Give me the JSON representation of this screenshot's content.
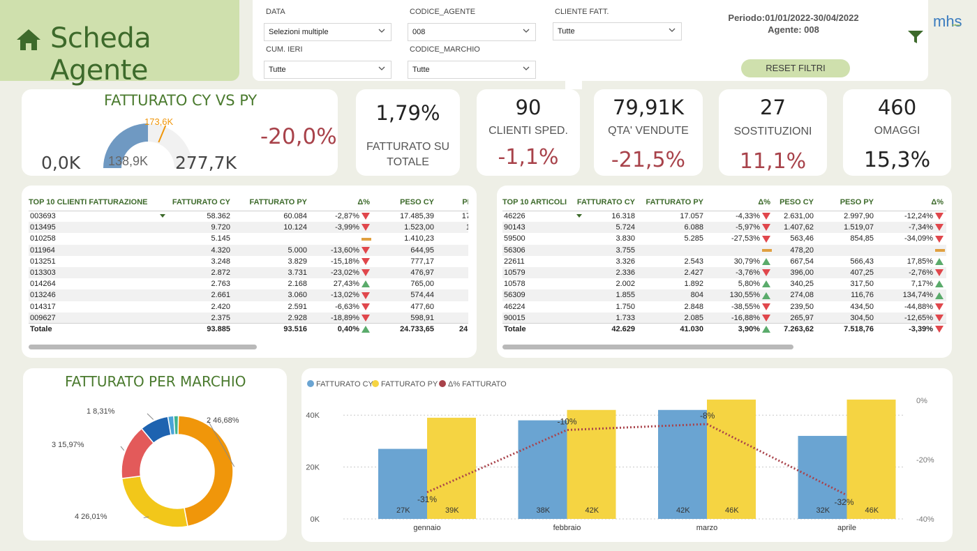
{
  "title": "Scheda Agente",
  "filters": {
    "data_label": "DATA",
    "data_value": "Selezioni multiple",
    "agente_label": "CODICE_AGENTE",
    "agente_value": "008",
    "cliente_label": "CLIENTE FATT.",
    "cliente_value": "Tutte",
    "cum_label": "CUM. IERI",
    "cum_value": "Tutte",
    "marchio_label": "CODICE_MARCHIO",
    "marchio_value": "Tutte",
    "periodo": "Periodo:01/01/2022-30/04/2022",
    "agente_info": "Agente: 008",
    "reset_label": "RESET FILTRI",
    "logo_text": "mhs"
  },
  "gauge": {
    "title": "FATTURATO CY VS PY",
    "min_label": "0,0K",
    "max_label": "277,7K",
    "value_label": "138,9K",
    "target_label": "173,6K",
    "delta": "-20,0%",
    "value": 138.9,
    "target": 173.6,
    "max": 277.7
  },
  "kpis": [
    {
      "value": "1,79%",
      "label": "FATTURATO SU TOTALE",
      "delta": ""
    },
    {
      "value": "90",
      "label": "CLIENTI SPED.",
      "delta": "-1,1%"
    },
    {
      "value": "79,91K",
      "label": "QTA' VENDUTE",
      "delta": "-21,5%"
    },
    {
      "value": "27",
      "label": "SOSTITUZIONI",
      "delta": "11,1%"
    },
    {
      "value": "460",
      "label": "OMAGGI",
      "delta": "15,3%"
    }
  ],
  "clients_table": {
    "headers": [
      "TOP 10 CLIENTI FATTURAZIONE",
      "FATTURATO CY",
      "FATTURATO PY",
      "Δ%",
      "PESO CY",
      "PE"
    ],
    "rows": [
      [
        "003693",
        "58.362",
        "60.084",
        "-2,87%",
        "down",
        "17.485,39",
        "17."
      ],
      [
        "013495",
        "9.720",
        "10.124",
        "-3,99%",
        "down",
        "1.523,00",
        "1."
      ],
      [
        "010258",
        "5.145",
        "",
        "",
        "flat",
        "1.410,23",
        ""
      ],
      [
        "011964",
        "4.320",
        "5.000",
        "-13,60%",
        "down",
        "644,95",
        ""
      ],
      [
        "013251",
        "3.248",
        "3.829",
        "-15,18%",
        "down",
        "777,17",
        ""
      ],
      [
        "013303",
        "2.872",
        "3.731",
        "-23,02%",
        "down",
        "476,97",
        ""
      ],
      [
        "014264",
        "2.763",
        "2.168",
        "27,43%",
        "up",
        "765,00",
        ""
      ],
      [
        "013246",
        "2.661",
        "3.060",
        "-13,02%",
        "down",
        "574,44",
        ""
      ],
      [
        "014317",
        "2.420",
        "2.591",
        "-6,63%",
        "down",
        "477,60",
        ""
      ],
      [
        "009627",
        "2.375",
        "2.928",
        "-18,89%",
        "down",
        "598,91",
        ""
      ]
    ],
    "total": [
      "Totale",
      "93.885",
      "93.516",
      "0,40%",
      "up",
      "24.733,65",
      "24.:"
    ]
  },
  "articles_table": {
    "headers": [
      "TOP 10 ARTICOLI",
      "FATTURATO CY",
      "FATTURATO PY",
      "Δ%",
      "PESO CY",
      "PESO PY",
      "Δ%"
    ],
    "rows": [
      [
        "46226",
        "16.318",
        "17.057",
        "-4,33%",
        "down",
        "2.631,00",
        "2.997,90",
        "-12,24%",
        "down"
      ],
      [
        "90143",
        "5.724",
        "6.088",
        "-5,97%",
        "down",
        "1.407,62",
        "1.519,07",
        "-7,34%",
        "down"
      ],
      [
        "59500",
        "3.830",
        "5.285",
        "-27,53%",
        "down",
        "563,46",
        "854,85",
        "-34,09%",
        "down"
      ],
      [
        "56306",
        "3.755",
        "",
        "",
        "flat",
        "478,20",
        "",
        "",
        "flat"
      ],
      [
        "22611",
        "3.326",
        "2.543",
        "30,79%",
        "up",
        "667,54",
        "566,43",
        "17,85%",
        "up"
      ],
      [
        "10579",
        "2.336",
        "2.427",
        "-3,76%",
        "down",
        "396,00",
        "407,25",
        "-2,76%",
        "down"
      ],
      [
        "10578",
        "2.002",
        "1.892",
        "5,80%",
        "up",
        "340,25",
        "317,50",
        "7,17%",
        "up"
      ],
      [
        "56309",
        "1.855",
        "804",
        "130,55%",
        "up",
        "274,08",
        "116,76",
        "134,74%",
        "up"
      ],
      [
        "46224",
        "1.750",
        "2.848",
        "-38,55%",
        "down",
        "239,50",
        "434,50",
        "-44,88%",
        "down"
      ],
      [
        "90015",
        "1.733",
        "2.085",
        "-16,88%",
        "down",
        "265,97",
        "304,50",
        "-12,65%",
        "down"
      ]
    ],
    "total": [
      "Totale",
      "42.629",
      "41.030",
      "3,90%",
      "up",
      "7.263,62",
      "7.518,76",
      "-3,39%",
      "down"
    ]
  },
  "colors": {
    "green_title": "#4a7a2e",
    "up": "#5aab6b",
    "down": "#e0474c",
    "flat": "#e0a040",
    "cy": "#6aa4d2",
    "py": "#f5d442",
    "delta_line": "#a8424a"
  },
  "chart_data": [
    {
      "type": "pie",
      "title": "FATTURATO PER MARCHIO",
      "slices": [
        {
          "label": "2 46,68%",
          "value": 46.68,
          "color": "#f0960a"
        },
        {
          "label": "4 26,01%",
          "value": 26.01,
          "color": "#f2c71a"
        },
        {
          "label": "3 15,97%",
          "value": 15.97,
          "color": "#e35a5a"
        },
        {
          "label": "1 8,31%",
          "value": 8.31,
          "color": "#1e63b0"
        },
        {
          "label": "",
          "value": 1.7,
          "color": "#4aa3d8"
        },
        {
          "label": "",
          "value": 1.33,
          "color": "#3fb38f"
        }
      ]
    },
    {
      "type": "bar",
      "legend": [
        "FATTURATO CY",
        "FATTURATO PY",
        "Δ% FATTURATO"
      ],
      "categories": [
        "gennaio",
        "febbraio",
        "marzo",
        "aprile"
      ],
      "series": [
        {
          "name": "FATTURATO CY",
          "values": [
            27,
            38,
            42,
            32
          ],
          "labels": [
            "27K",
            "38K",
            "42K",
            "32K"
          ]
        },
        {
          "name": "FATTURATO PY",
          "values": [
            39,
            42,
            46,
            46
          ],
          "labels": [
            "39K",
            "42K",
            "46K",
            "46K"
          ]
        }
      ],
      "line": {
        "name": "Δ% FATTURATO",
        "values": [
          -31,
          -10,
          -8,
          -32
        ],
        "labels": [
          "-31%",
          "-10%",
          "-8%",
          "-32%"
        ]
      },
      "yticks": [
        "0K",
        "20K",
        "40K"
      ],
      "ylim": [
        0,
        50
      ],
      "y2ticks": [
        "0%",
        "-20%",
        "-40%"
      ],
      "y2lim": [
        -40,
        0
      ]
    }
  ]
}
